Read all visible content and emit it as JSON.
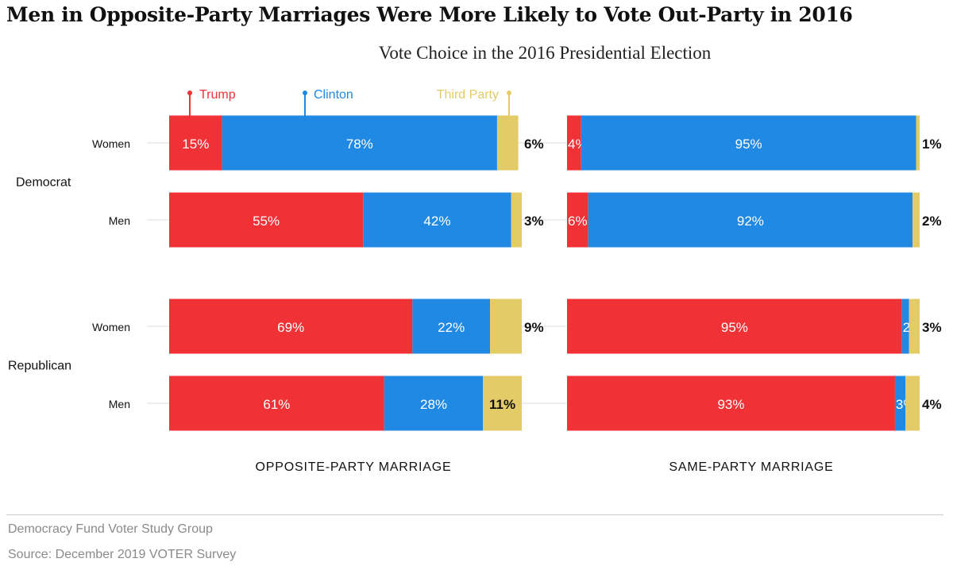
{
  "title": "Men in Opposite-Party Marriages Were More Likely to Vote Out-Party in 2016",
  "subtitle": "Vote Choice in the 2016 Presidential Election",
  "notes": [
    "Democracy Fund Voter Study Group",
    "Source: December 2019 VOTER Survey"
  ],
  "colors": {
    "Trump": "#f03237",
    "Clinton": "#2089e3",
    "Third Party": "#e3cc67",
    "grid": "#dddddd"
  },
  "chart_data": {
    "type": "bar",
    "orientation": "horizontal",
    "stacked": true,
    "xlim": [
      0,
      100
    ],
    "legend": [
      "Trump",
      "Clinton",
      "Third Party"
    ],
    "legend_position": "top",
    "panels": [
      "OPPOSITE-PARTY MARRIAGE",
      "SAME-PARTY MARRIAGE"
    ],
    "groups": [
      {
        "label": "Democrat",
        "rows": [
          {
            "label": "Women",
            "values": [
              [
                15,
                78,
                6
              ],
              [
                4,
                95,
                1
              ]
            ]
          },
          {
            "label": "Men",
            "values": [
              [
                55,
                42,
                3
              ],
              [
                6,
                92,
                2
              ]
            ]
          }
        ]
      },
      {
        "label": "Republican",
        "rows": [
          {
            "label": "Women",
            "values": [
              [
                69,
                22,
                9
              ],
              [
                95,
                2,
                3
              ]
            ]
          },
          {
            "label": "Men",
            "values": [
              [
                61,
                28,
                11
              ],
              [
                93,
                3,
                4
              ]
            ]
          }
        ]
      }
    ]
  }
}
